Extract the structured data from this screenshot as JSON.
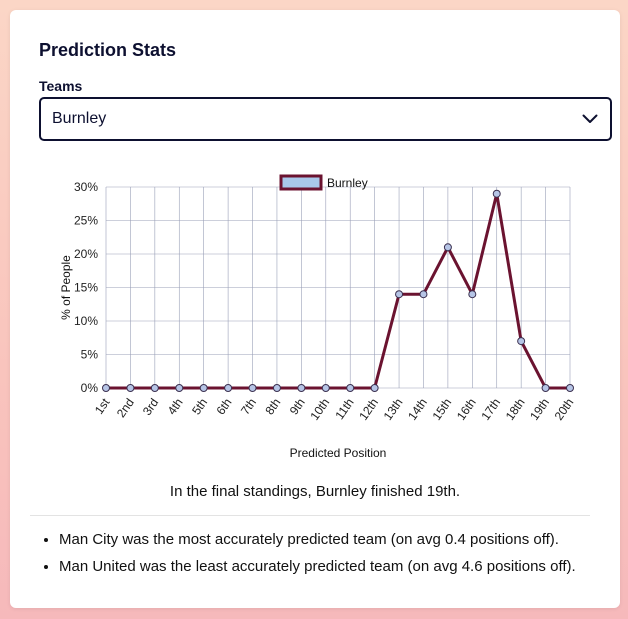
{
  "card": {
    "title": "Prediction Stats",
    "teams_label": "Teams",
    "selected_team": "Burnley",
    "final_standing_text": "In the final standings, Burnley finished 19th.",
    "notes": [
      "Man City was the most accurately predicted team (on avg 0.4 positions off).",
      "Man United was the least accurately predicted team (on avg 4.6 positions off)."
    ]
  },
  "colors": {
    "line": "#6b1330",
    "marker": "#b6c5e6",
    "legend_fill": "#a9c8ea",
    "grid": "#9aa0b8"
  },
  "chart_data": {
    "type": "line",
    "categories": [
      "1st",
      "2nd",
      "3rd",
      "4th",
      "5th",
      "6th",
      "7th",
      "8th",
      "9th",
      "10th",
      "11th",
      "12th",
      "13th",
      "14th",
      "15th",
      "16th",
      "17th",
      "18th",
      "19th",
      "20th"
    ],
    "series": [
      {
        "name": "Burnley",
        "values": [
          0,
          0,
          0,
          0,
          0,
          0,
          0,
          0,
          0,
          0,
          0,
          0,
          14,
          14,
          21,
          14,
          29,
          7,
          0,
          0
        ]
      }
    ],
    "xlabel": "Predicted Position",
    "ylabel": "% of People",
    "ylim": [
      0,
      30
    ],
    "yticks": [
      "0%",
      "5%",
      "10%",
      "15%",
      "20%",
      "25%",
      "30%"
    ],
    "legend": "top",
    "grid": true
  }
}
